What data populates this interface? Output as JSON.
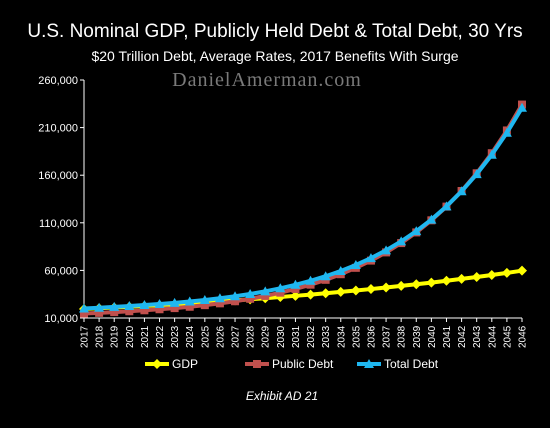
{
  "chart_data": {
    "type": "line",
    "title": "U.S. Nominal GDP, Publicly Held Debt & Total Debt, 30 Yrs",
    "subtitle": "$20 Trillion Debt, Average Rates, 2017 Benefits With Surge",
    "watermark": "DanielAmerman.com",
    "footer": "Exhibit AD 21",
    "ylim": [
      10000,
      260000
    ],
    "yticks": [
      10000,
      60000,
      110000,
      160000,
      210000,
      260000
    ],
    "ytick_labels": [
      "10,000",
      "60,000",
      "110,000",
      "160,000",
      "210,000",
      "260,000"
    ],
    "grid": false,
    "legend_position": "bottom",
    "categories": [
      "2017",
      "2018",
      "2019",
      "2020",
      "2021",
      "2022",
      "2023",
      "2024",
      "2025",
      "2026",
      "2027",
      "2028",
      "2029",
      "2030",
      "2031",
      "2032",
      "2033",
      "2034",
      "2035",
      "2036",
      "2037",
      "2038",
      "2039",
      "2040",
      "2041",
      "2042",
      "2043",
      "2044",
      "2045",
      "2046"
    ],
    "series": [
      {
        "name": "GDP",
        "color": "#ffff00",
        "marker": "diamond",
        "values": [
          19400,
          20200,
          21000,
          21800,
          22600,
          23500,
          24400,
          25400,
          26400,
          27400,
          28500,
          29600,
          30800,
          32000,
          33300,
          34600,
          36000,
          37400,
          38900,
          40400,
          42000,
          43700,
          45400,
          47200,
          49100,
          51100,
          53100,
          55200,
          57400,
          59700
        ]
      },
      {
        "name": "Public Debt",
        "color": "#c0504d",
        "marker": "square",
        "values": [
          14700,
          15400,
          16200,
          17100,
          18100,
          19200,
          20400,
          21800,
          23500,
          25400,
          27600,
          30200,
          33200,
          36600,
          40500,
          45000,
          50100,
          56000,
          62700,
          70300,
          78900,
          88700,
          99900,
          112600,
          127000,
          143400,
          162000,
          183100,
          207000,
          234200
        ]
      },
      {
        "name": "Total Debt",
        "color": "#1fb7f0",
        "marker": "triangle",
        "values": [
          20000,
          20800,
          21700,
          22600,
          23600,
          24700,
          25900,
          27300,
          28900,
          30700,
          32800,
          35200,
          38000,
          41200,
          44900,
          49100,
          53900,
          59400,
          65700,
          72900,
          81100,
          90500,
          101200,
          113400,
          127300,
          143100,
          161100,
          181500,
          204600,
          230800
        ]
      }
    ]
  }
}
